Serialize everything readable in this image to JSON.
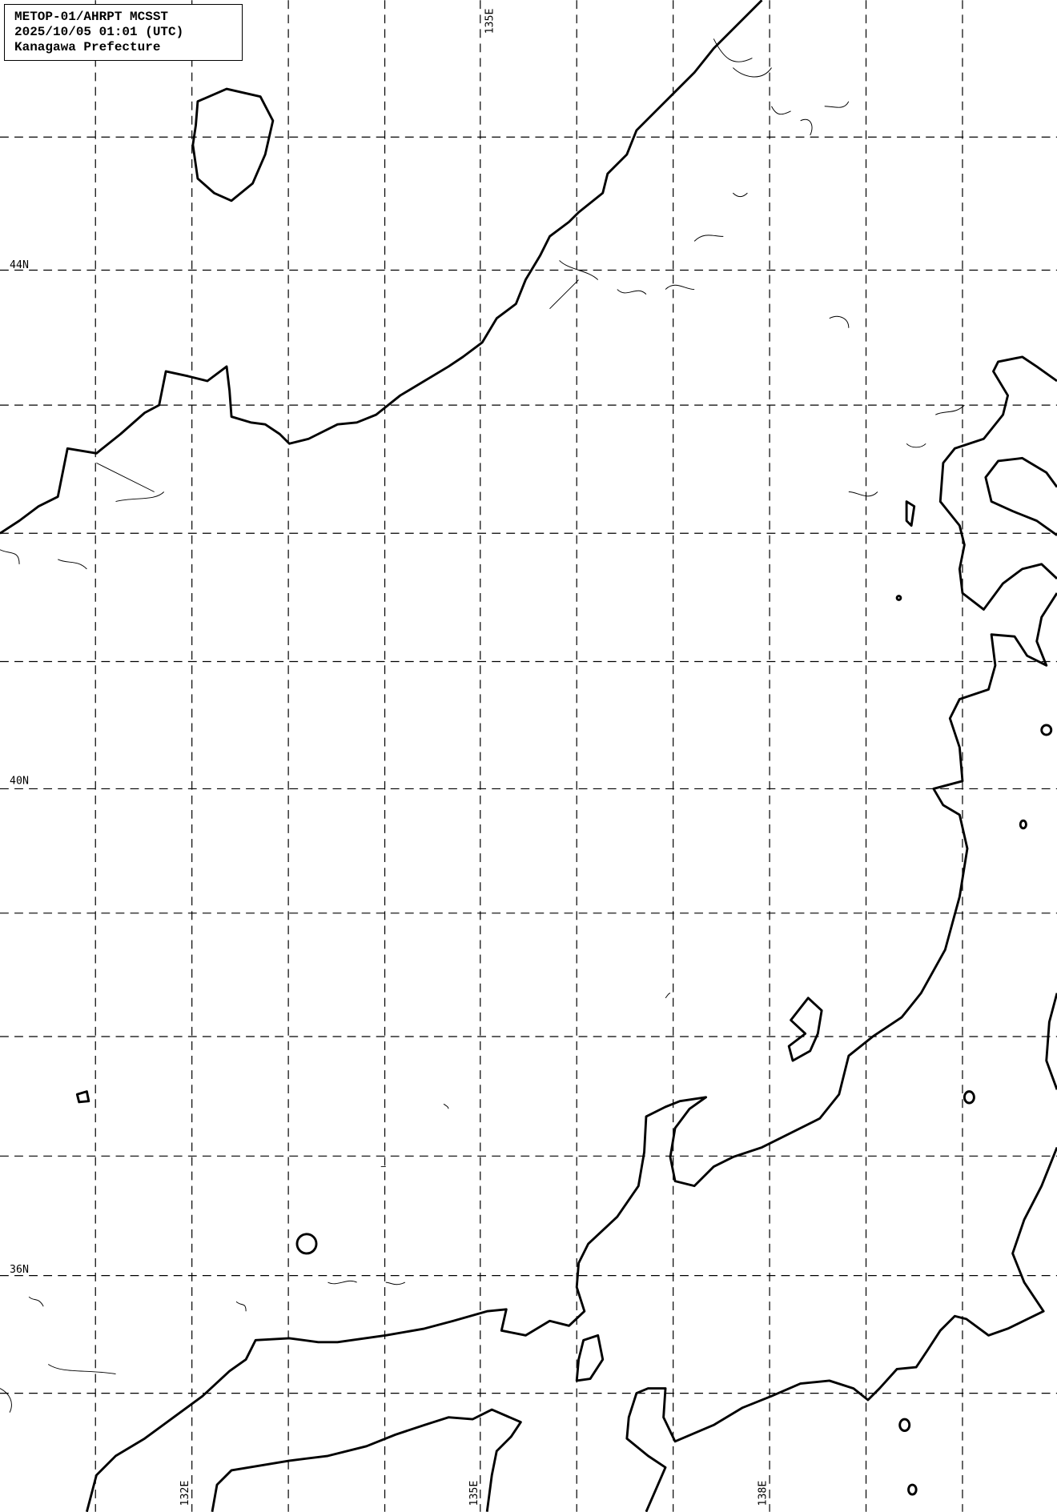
{
  "header": {
    "lines": [
      "METOP-01/AHRPT MCSST",
      "2025/10/05 01:01 (UTC)",
      "Kanagawa Prefecture"
    ]
  },
  "map": {
    "latitude_labels": [
      "44N",
      "40N",
      "36N"
    ],
    "longitude_labels_top": [
      "135E"
    ],
    "longitude_labels_bottom": [
      "132E",
      "135E",
      "138E"
    ],
    "line_color": "#000000",
    "background_color": "#ffffff"
  }
}
